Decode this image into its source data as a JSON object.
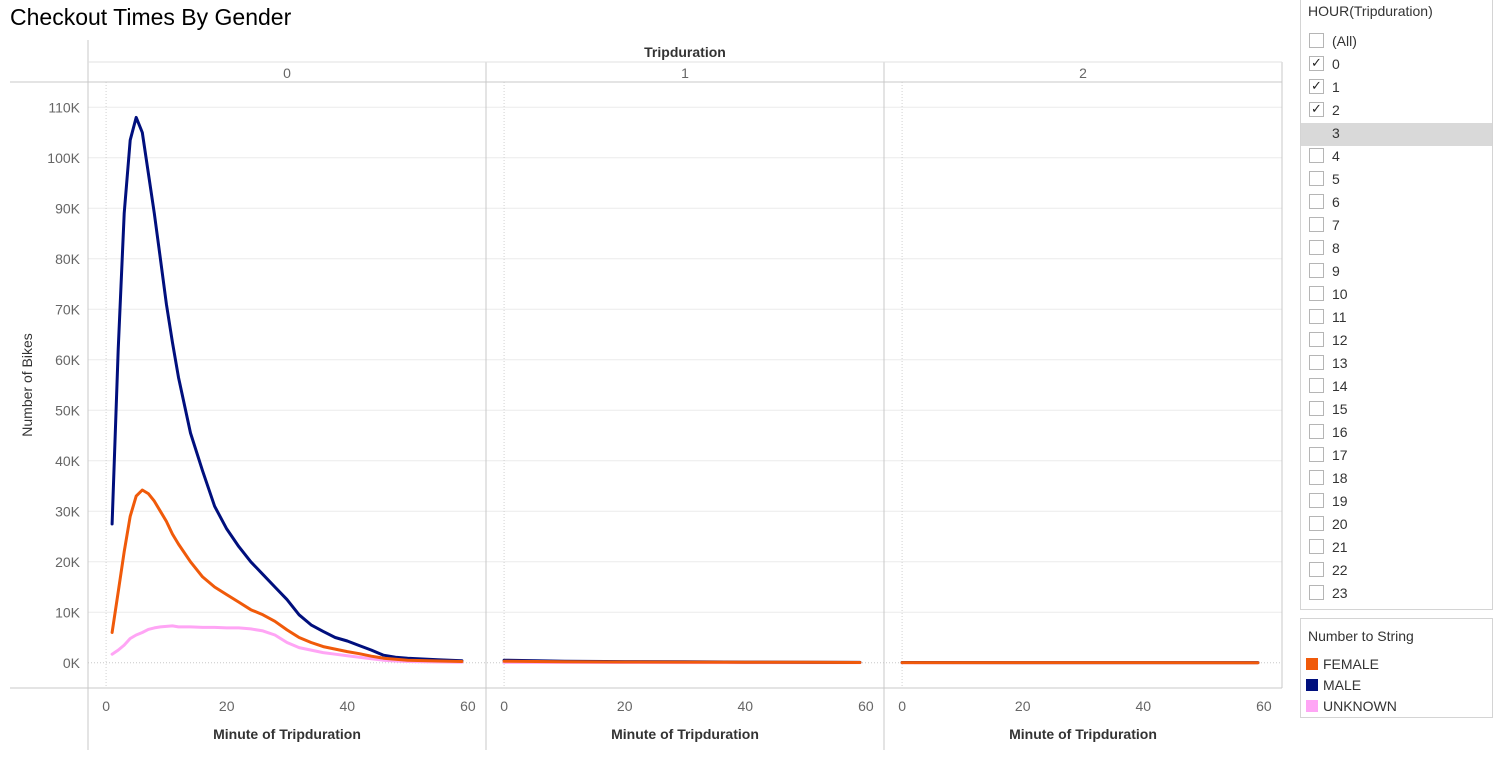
{
  "title": "Checkout Times By Gender",
  "chart_data": {
    "type": "line",
    "column_header": "Tripduration",
    "panels": [
      "0",
      "1",
      "2"
    ],
    "xlabel": "Minute of Tripduration",
    "ylabel": "Number of Bikes",
    "x_ticks": [
      0,
      20,
      40,
      60
    ],
    "y_ticks": [
      "0K",
      "10K",
      "20K",
      "30K",
      "40K",
      "50K",
      "60K",
      "70K",
      "80K",
      "90K",
      "100K",
      "110K"
    ],
    "xlim": [
      -3,
      63
    ],
    "ylim": [
      -5000,
      115000
    ],
    "grid": true,
    "series": [
      {
        "name": "FEMALE",
        "color": "#f05a0a",
        "panels": [
          [
            [
              1,
              6000
            ],
            [
              2,
              14000
            ],
            [
              3,
              22000
            ],
            [
              4,
              29000
            ],
            [
              5,
              33000
            ],
            [
              6,
              34200
            ],
            [
              7,
              33500
            ],
            [
              8,
              32000
            ],
            [
              9,
              30000
            ],
            [
              10,
              28000
            ],
            [
              11,
              25500
            ],
            [
              12,
              23500
            ],
            [
              14,
              20000
            ],
            [
              16,
              17000
            ],
            [
              18,
              15000
            ],
            [
              20,
              13500
            ],
            [
              22,
              12000
            ],
            [
              24,
              10500
            ],
            [
              26,
              9500
            ],
            [
              28,
              8200
            ],
            [
              30,
              6500
            ],
            [
              32,
              5000
            ],
            [
              34,
              4000
            ],
            [
              36,
              3200
            ],
            [
              38,
              2700
            ],
            [
              40,
              2200
            ],
            [
              42,
              1800
            ],
            [
              44,
              1300
            ],
            [
              46,
              900
            ],
            [
              48,
              700
            ],
            [
              50,
              500
            ],
            [
              55,
              350
            ],
            [
              59,
              250
            ]
          ],
          [
            [
              0,
              300
            ],
            [
              10,
              200
            ],
            [
              20,
              150
            ],
            [
              30,
              120
            ],
            [
              40,
              100
            ],
            [
              50,
              80
            ],
            [
              59,
              50
            ]
          ],
          [
            [
              0,
              30
            ],
            [
              20,
              25
            ],
            [
              40,
              20
            ],
            [
              59,
              15
            ]
          ]
        ]
      },
      {
        "name": "MALE",
        "color": "#000f7d",
        "panels": [
          [
            [
              1,
              27500
            ],
            [
              2,
              62000
            ],
            [
              3,
              89000
            ],
            [
              4,
              103500
            ],
            [
              5,
              108000
            ],
            [
              6,
              105000
            ],
            [
              7,
              97000
            ],
            [
              8,
              89000
            ],
            [
              9,
              80000
            ],
            [
              10,
              71000
            ],
            [
              11,
              63500
            ],
            [
              12,
              56500
            ],
            [
              14,
              45500
            ],
            [
              16,
              38000
            ],
            [
              18,
              31000
            ],
            [
              20,
              26500
            ],
            [
              22,
              23000
            ],
            [
              24,
              20000
            ],
            [
              26,
              17500
            ],
            [
              28,
              15000
            ],
            [
              30,
              12500
            ],
            [
              32,
              9500
            ],
            [
              34,
              7500
            ],
            [
              36,
              6200
            ],
            [
              38,
              5000
            ],
            [
              40,
              4300
            ],
            [
              42,
              3400
            ],
            [
              44,
              2500
            ],
            [
              46,
              1500
            ],
            [
              48,
              1100
            ],
            [
              50,
              900
            ],
            [
              55,
              600
            ],
            [
              59,
              400
            ]
          ],
          [
            [
              0,
              500
            ],
            [
              10,
              300
            ],
            [
              20,
              220
            ],
            [
              30,
              180
            ],
            [
              40,
              130
            ],
            [
              50,
              90
            ],
            [
              59,
              60
            ]
          ],
          [
            [
              0,
              40
            ],
            [
              20,
              30
            ],
            [
              40,
              25
            ],
            [
              59,
              20
            ]
          ]
        ]
      },
      {
        "name": "UNKNOWN",
        "color": "#ffa5f5",
        "panels": [
          [
            [
              1,
              1700
            ],
            [
              2,
              2500
            ],
            [
              3,
              3500
            ],
            [
              4,
              4800
            ],
            [
              5,
              5500
            ],
            [
              6,
              6000
            ],
            [
              7,
              6600
            ],
            [
              8,
              6900
            ],
            [
              9,
              7100
            ],
            [
              10,
              7200
            ],
            [
              11,
              7300
            ],
            [
              12,
              7100
            ],
            [
              14,
              7100
            ],
            [
              16,
              7000
            ],
            [
              18,
              7000
            ],
            [
              20,
              6900
            ],
            [
              22,
              6900
            ],
            [
              24,
              6700
            ],
            [
              26,
              6300
            ],
            [
              28,
              5500
            ],
            [
              30,
              4000
            ],
            [
              32,
              3000
            ],
            [
              34,
              2500
            ],
            [
              36,
              2000
            ],
            [
              38,
              1700
            ],
            [
              40,
              1400
            ],
            [
              42,
              1100
            ],
            [
              44,
              800
            ],
            [
              46,
              500
            ],
            [
              48,
              350
            ],
            [
              50,
              250
            ],
            [
              55,
              150
            ],
            [
              59,
              100
            ]
          ],
          [
            [
              0,
              60
            ],
            [
              20,
              40
            ],
            [
              40,
              30
            ],
            [
              59,
              20
            ]
          ],
          [
            [
              0,
              10
            ],
            [
              30,
              8
            ],
            [
              59,
              5
            ]
          ]
        ]
      }
    ],
    "legend": {
      "title": "Number to String",
      "position": "right"
    }
  },
  "filter": {
    "title": "HOUR(Tripduration)",
    "items": [
      {
        "label": "(All)",
        "checked": false
      },
      {
        "label": "0",
        "checked": true
      },
      {
        "label": "1",
        "checked": true
      },
      {
        "label": "2",
        "checked": true
      },
      {
        "label": "3",
        "checked": false,
        "highlight": true
      },
      {
        "label": "4",
        "checked": false
      },
      {
        "label": "5",
        "checked": false
      },
      {
        "label": "6",
        "checked": false
      },
      {
        "label": "7",
        "checked": false
      },
      {
        "label": "8",
        "checked": false
      },
      {
        "label": "9",
        "checked": false
      },
      {
        "label": "10",
        "checked": false
      },
      {
        "label": "11",
        "checked": false
      },
      {
        "label": "12",
        "checked": false
      },
      {
        "label": "13",
        "checked": false
      },
      {
        "label": "14",
        "checked": false
      },
      {
        "label": "15",
        "checked": false
      },
      {
        "label": "16",
        "checked": false
      },
      {
        "label": "17",
        "checked": false
      },
      {
        "label": "18",
        "checked": false
      },
      {
        "label": "19",
        "checked": false
      },
      {
        "label": "20",
        "checked": false
      },
      {
        "label": "21",
        "checked": false
      },
      {
        "label": "22",
        "checked": false
      },
      {
        "label": "23",
        "checked": false
      }
    ]
  }
}
